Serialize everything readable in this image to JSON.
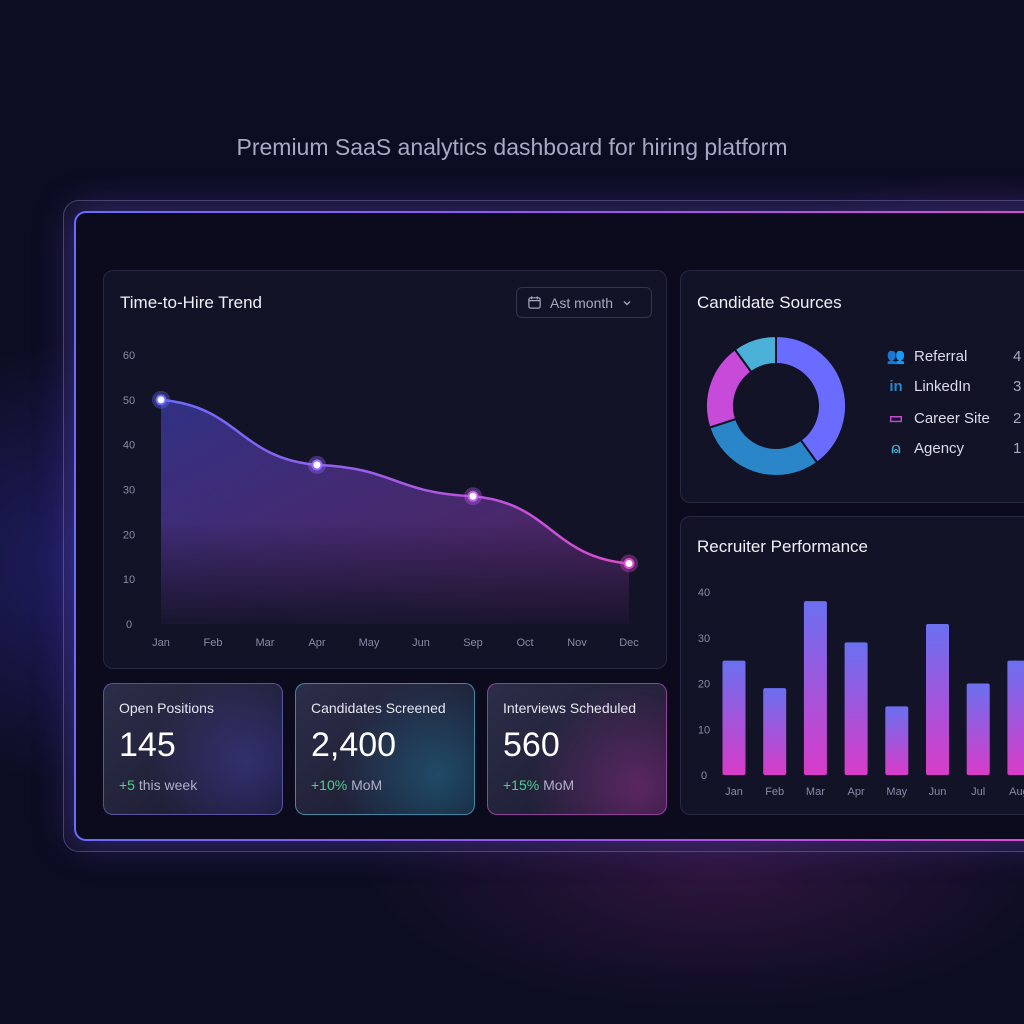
{
  "headline": "Premium SaaS analytics dashboard for hiring platform",
  "colors": {
    "blue": "#6a6cff",
    "purple": "#9a55f0",
    "pink": "#e04ad0",
    "linkedin": "#2a86c8",
    "agency": "#4ab0d8",
    "positive": "#4fd08a"
  },
  "trend": {
    "title": "Time-to-Hire Trend",
    "filter_label": "Ast month",
    "filter_icon": "calendar-icon"
  },
  "sources": {
    "title": "Candidate Sources",
    "items": [
      {
        "label": "Referral",
        "value": "4",
        "icon": "users-icon",
        "color": "#6a6cff",
        "share": 40
      },
      {
        "label": "LinkedIn",
        "value": "3",
        "icon": "linkedin-icon",
        "color": "#2a86c8",
        "share": 30
      },
      {
        "label": "Career Site",
        "value": "2",
        "icon": "monitor-icon",
        "color": "#c84ad8",
        "share": 20
      },
      {
        "label": "Agency",
        "value": "1",
        "icon": "agency-icon",
        "color": "#4ab0d8",
        "share": 10
      }
    ]
  },
  "performance": {
    "title": "Recruiter Performance"
  },
  "kpis": [
    {
      "label": "Open Positions",
      "value": "145",
      "delta": "+5",
      "delta_suffix": " this week"
    },
    {
      "label": "Candidates Screened",
      "value": "2,400",
      "delta": "+10%",
      "delta_suffix": " MoM"
    },
    {
      "label": "Interviews Scheduled",
      "value": "560",
      "delta": "+15%",
      "delta_suffix": " MoM"
    }
  ],
  "chart_data": [
    {
      "type": "area",
      "title": "Time-to-Hire Trend",
      "categories": [
        "Jan",
        "Feb",
        "Mar",
        "Apr",
        "May",
        "Jun",
        "Sep",
        "Oct",
        "Nov",
        "Dec"
      ],
      "points": [
        {
          "x": "Jan",
          "y": 50
        },
        {
          "x": "Apr",
          "y": 35.5
        },
        {
          "x": "Sep",
          "y": 28.5
        },
        {
          "x": "Dec",
          "y": 13.5
        }
      ],
      "yticks": [
        0,
        10,
        20,
        30,
        40,
        50,
        60
      ],
      "ylim": [
        0,
        60
      ],
      "grid": false
    },
    {
      "type": "bar",
      "title": "Recruiter Performance",
      "categories": [
        "Jan",
        "Feb",
        "Mar",
        "Apr",
        "May",
        "Jun",
        "Jul",
        "Aug"
      ],
      "values": [
        25,
        19,
        38,
        29,
        15,
        33,
        20,
        25
      ],
      "yticks": [
        0,
        10,
        20,
        30,
        40
      ],
      "ylim": [
        0,
        40
      ],
      "grid": false
    }
  ]
}
